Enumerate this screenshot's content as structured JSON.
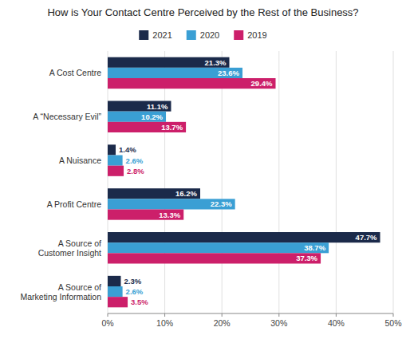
{
  "chart_data": {
    "type": "bar",
    "orientation": "horizontal",
    "title": "How is Your Contact Centre Perceived by the Rest of the Business?",
    "categories": [
      "A Cost Centre",
      "A “Necessary Evil”",
      "A Nuisance",
      "A Profit Centre",
      "A Source of\nCustomer Insight",
      "A Source of\nMarketing Information"
    ],
    "series": [
      {
        "name": "2021",
        "color": "#1b2a4a",
        "values": [
          21.3,
          11.1,
          1.4,
          16.2,
          47.7,
          2.3
        ],
        "value_labels": [
          "21.3%",
          "11.1%",
          "1.4%",
          "16.2%",
          "47.7%",
          "2.3%"
        ]
      },
      {
        "name": "2020",
        "color": "#3a9fd4",
        "values": [
          23.6,
          10.2,
          2.6,
          22.3,
          38.7,
          2.6
        ],
        "value_labels": [
          "23.6%",
          "10.2%",
          "2.6%",
          "22.3%",
          "38.7%",
          "2.6%"
        ]
      },
      {
        "name": "2019",
        "color": "#cc1f6a",
        "values": [
          29.4,
          13.7,
          2.8,
          13.3,
          37.3,
          3.5
        ],
        "value_labels": [
          "29.4%",
          "13.7%",
          "2.8%",
          "13.3%",
          "37.3%",
          "3.5%"
        ]
      }
    ],
    "xlim": [
      0,
      50
    ],
    "xticks": [
      {
        "value": 0,
        "label": "0%"
      },
      {
        "value": 10,
        "label": "10%"
      },
      {
        "value": 20,
        "label": "20%"
      },
      {
        "value": 30,
        "label": "30%"
      },
      {
        "value": 40,
        "label": "40%"
      },
      {
        "value": 50,
        "label": "50%"
      }
    ],
    "grid": true,
    "legend": "top",
    "data_labels": true
  }
}
